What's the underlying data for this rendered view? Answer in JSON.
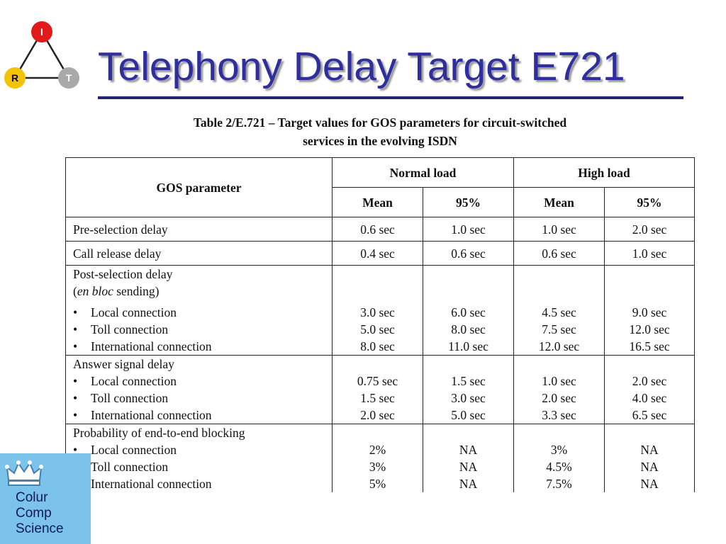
{
  "logo": {
    "nodes": {
      "top": "I",
      "left": "R",
      "right": "T"
    },
    "colors": {
      "top": "#e11b1b",
      "left": "#f2c400",
      "right": "#a9a9a9"
    }
  },
  "title": "Telephony Delay Target E721",
  "caption": {
    "line1": "Table 2/E.721 – Target values for GOS parameters for circuit-switched",
    "line2": "services in the evolving ISDN"
  },
  "table": {
    "header": {
      "parameter": "GOS parameter",
      "normal_load": "Normal load",
      "high_load": "High load",
      "mean": "Mean",
      "p95": "95%"
    },
    "rows": [
      {
        "label": "Pre-selection delay",
        "values": [
          "0.6 sec",
          "1.0 sec",
          "1.0 sec",
          "2.0 sec"
        ]
      },
      {
        "label": "Call release delay",
        "values": [
          "0.4 sec",
          "0.6 sec",
          "0.6 sec",
          "1.0 sec"
        ]
      }
    ],
    "groups": [
      {
        "label": "Post-selection delay",
        "note_prefix": "(",
        "note_italic": "en bloc",
        "note_suffix": " sending)",
        "items": [
          {
            "label": "Local connection",
            "values": [
              "3.0 sec",
              "6.0 sec",
              "4.5 sec",
              "9.0 sec"
            ]
          },
          {
            "label": "Toll connection",
            "values": [
              "5.0 sec",
              "8.0 sec",
              "7.5 sec",
              "12.0 sec"
            ]
          },
          {
            "label": "International connection",
            "values": [
              "8.0 sec",
              "11.0 sec",
              "12.0 sec",
              "16.5 sec"
            ]
          }
        ]
      },
      {
        "label": "Answer signal delay",
        "items": [
          {
            "label": "Local connection",
            "values": [
              "0.75 sec",
              "1.5 sec",
              "1.0 sec",
              "2.0 sec"
            ]
          },
          {
            "label": "Toll connection",
            "values": [
              "1.5 sec",
              "3.0 sec",
              "2.0 sec",
              "4.0 sec"
            ]
          },
          {
            "label": "International connection",
            "values": [
              "2.0 sec",
              "5.0 sec",
              "3.3 sec",
              "6.5 sec"
            ]
          }
        ]
      },
      {
        "label": "Probability of end-to-end blocking",
        "items": [
          {
            "label": "Local connection",
            "values": [
              "2%",
              "NA",
              "3%",
              "NA"
            ]
          },
          {
            "label": "Toll connection",
            "values": [
              "3%",
              "NA",
              "4.5%",
              "NA"
            ]
          },
          {
            "label": "International connection",
            "values": [
              "5%",
              "NA",
              "7.5%",
              "NA"
            ]
          }
        ]
      }
    ]
  },
  "institution_logo": {
    "line1": "Colur",
    "line2": "Comp",
    "line3": "Science"
  }
}
